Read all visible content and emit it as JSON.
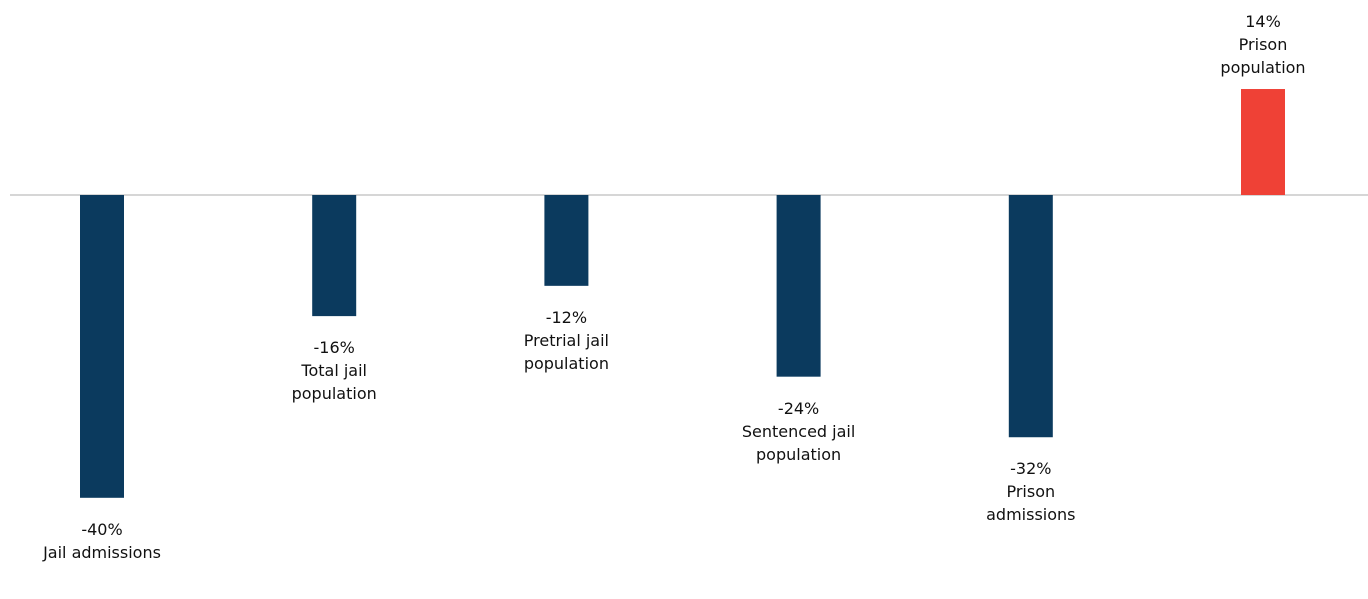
{
  "chart_data": {
    "type": "bar",
    "categories": [
      "Jail admissions",
      "Total jail population",
      "Pretrial jail population",
      "Sentenced jail population",
      "Prison admissions",
      "Prison population"
    ],
    "values": [
      -40,
      -16,
      -12,
      -24,
      -32,
      14
    ],
    "value_labels": [
      "-40%",
      "-16%",
      "-12%",
      "-24%",
      "-32%",
      "14%"
    ],
    "colors": [
      "#0b3a5e",
      "#0b3a5e",
      "#0b3a5e",
      "#0b3a5e",
      "#0b3a5e",
      "#ef4136"
    ]
  }
}
